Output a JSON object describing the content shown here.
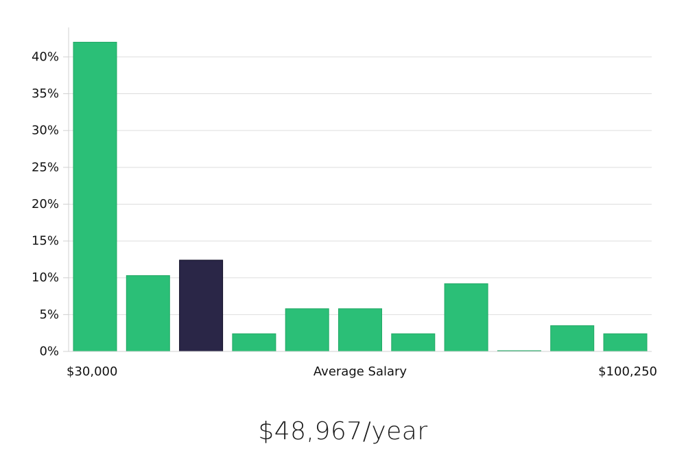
{
  "chart_data": {
    "type": "bar",
    "bins": [
      "1",
      "2",
      "3",
      "4",
      "5",
      "6",
      "7",
      "8",
      "9",
      "10",
      "11"
    ],
    "values": [
      42,
      10.3,
      12.4,
      2.4,
      5.8,
      5.8,
      2.4,
      9.2,
      0.1,
      3.5,
      2.4
    ],
    "highlight_index": 2,
    "ylim": [
      0,
      44
    ],
    "y_ticks": [
      0,
      5,
      10,
      15,
      20,
      25,
      30,
      35,
      40
    ],
    "y_tick_suffix": "%",
    "x_min_label": "$30,000",
    "x_max_label": "$100,250",
    "xlabel": "Average Salary",
    "grid": true,
    "colors": {
      "bar": "#2bbf77",
      "bar_stroke": "#22a865",
      "highlight": "#2a2647",
      "highlight_stroke": "#0f0d24",
      "grid": "#dddddd",
      "axis": "#d0d0d0"
    }
  },
  "caption": "$48,967/year"
}
